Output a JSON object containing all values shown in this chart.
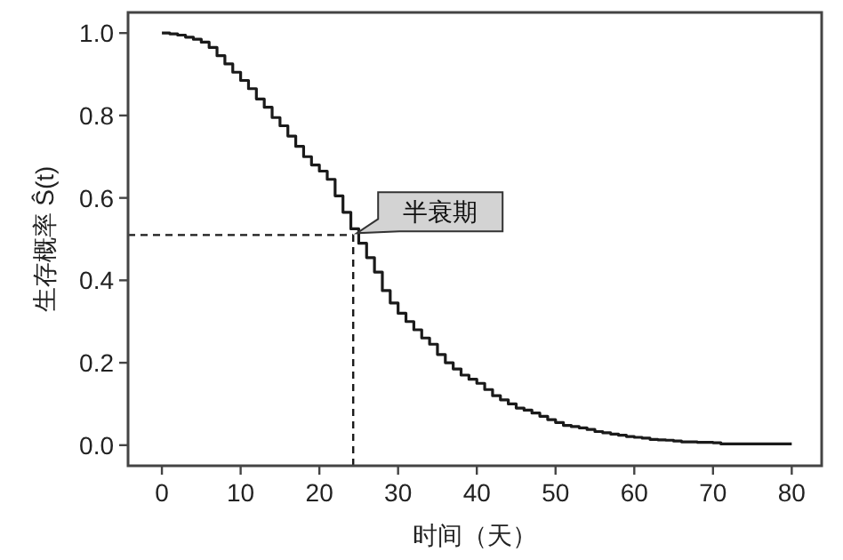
{
  "chart_data": {
    "type": "step",
    "xlabel": "时间（天）",
    "ylabel": "生存概率 Ŝ(t)",
    "x": [
      0,
      1,
      2,
      3,
      4,
      5,
      6,
      7,
      8,
      9,
      10,
      11,
      12,
      13,
      14,
      15,
      16,
      17,
      18,
      19,
      20,
      21,
      22,
      23,
      24,
      25,
      26,
      27,
      28,
      29,
      30,
      31,
      32,
      33,
      34,
      35,
      36,
      37,
      38,
      39,
      40,
      41,
      42,
      43,
      44,
      45,
      46,
      47,
      48,
      49,
      50,
      51,
      52,
      53,
      54,
      55,
      56,
      57,
      58,
      59,
      60,
      61,
      62,
      63,
      64,
      65,
      66,
      67,
      68,
      69,
      70,
      71,
      80
    ],
    "series": [
      {
        "color": "#1a1a1a",
        "values": [
          1.0,
          0.998,
          0.995,
          0.99,
          0.985,
          0.978,
          0.965,
          0.945,
          0.925,
          0.905,
          0.885,
          0.865,
          0.84,
          0.82,
          0.795,
          0.775,
          0.75,
          0.725,
          0.7,
          0.68,
          0.665,
          0.645,
          0.605,
          0.565,
          0.525,
          0.49,
          0.455,
          0.42,
          0.375,
          0.345,
          0.32,
          0.3,
          0.28,
          0.26,
          0.245,
          0.22,
          0.2,
          0.185,
          0.17,
          0.16,
          0.15,
          0.135,
          0.12,
          0.11,
          0.1,
          0.09,
          0.085,
          0.078,
          0.07,
          0.062,
          0.055,
          0.048,
          0.045,
          0.042,
          0.038,
          0.033,
          0.03,
          0.027,
          0.024,
          0.021,
          0.019,
          0.017,
          0.014,
          0.013,
          0.012,
          0.01,
          0.008,
          0.008,
          0.007,
          0.007,
          0.006,
          0.003,
          0.003
        ]
      }
    ],
    "xlim": [
      -4.3,
      83.8
    ],
    "ylim": [
      -0.05,
      1.05
    ],
    "xticks": [
      0,
      10,
      20,
      30,
      40,
      50,
      60,
      70,
      80
    ],
    "yticks": [
      {
        "value": 0,
        "label": "0.0"
      },
      0.2,
      0.4,
      0.6,
      0.8,
      {
        "value": 1,
        "label": "1.0"
      }
    ],
    "ref_lines": [
      {
        "axis": "y",
        "value": 0.51,
        "line_style": "dashed",
        "color": "#1a1a1a"
      },
      {
        "axis": "x",
        "value": 24.3,
        "line_style": "dashed",
        "color": "#1a1a1a"
      }
    ],
    "annotations": [
      {
        "text": "半衰期",
        "x": 24.3,
        "y": 0.51
      }
    ],
    "grid": false
  }
}
